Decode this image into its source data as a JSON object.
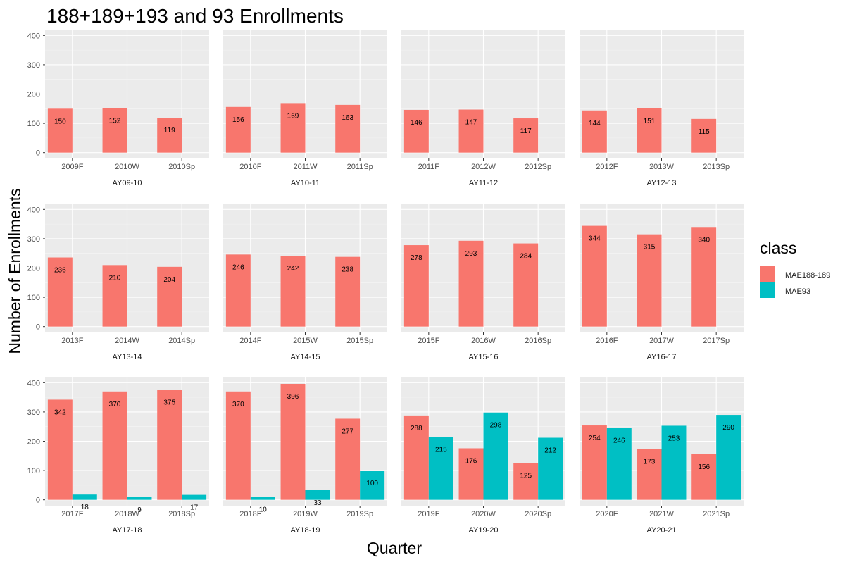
{
  "chart_data": {
    "type": "bar",
    "title": "188+189+193 and 93 Enrollments",
    "xlabel": "Quarter",
    "ylabel": "Number of Enrollments",
    "ylim": [
      0,
      420
    ],
    "yticks": [
      0,
      100,
      200,
      300,
      400
    ],
    "grid": true,
    "legend": {
      "title": "class",
      "position": "right",
      "entries": [
        {
          "name": "MAE188-189",
          "color": "#F8766D"
        },
        {
          "name": "MAE93",
          "color": "#00BFC4"
        }
      ]
    },
    "panels": [
      {
        "label": "AY09-10",
        "quarters": [
          "2009F",
          "2010W",
          "2010Sp"
        ],
        "MAE188_189": [
          150,
          152,
          119
        ],
        "MAE93": [
          null,
          null,
          null
        ]
      },
      {
        "label": "AY10-11",
        "quarters": [
          "2010F",
          "2011W",
          "2011Sp"
        ],
        "MAE188_189": [
          156,
          169,
          163
        ],
        "MAE93": [
          null,
          null,
          null
        ]
      },
      {
        "label": "AY11-12",
        "quarters": [
          "2011F",
          "2012W",
          "2012Sp"
        ],
        "MAE188_189": [
          146,
          147,
          117
        ],
        "MAE93": [
          null,
          null,
          null
        ]
      },
      {
        "label": "AY12-13",
        "quarters": [
          "2012F",
          "2013W",
          "2013Sp"
        ],
        "MAE188_189": [
          144,
          151,
          115
        ],
        "MAE93": [
          null,
          null,
          null
        ]
      },
      {
        "label": "AY13-14",
        "quarters": [
          "2013F",
          "2014W",
          "2014Sp"
        ],
        "MAE188_189": [
          236,
          210,
          204
        ],
        "MAE93": [
          null,
          null,
          null
        ]
      },
      {
        "label": "AY14-15",
        "quarters": [
          "2014F",
          "2015W",
          "2015Sp"
        ],
        "MAE188_189": [
          246,
          242,
          238
        ],
        "MAE93": [
          null,
          null,
          null
        ]
      },
      {
        "label": "AY15-16",
        "quarters": [
          "2015F",
          "2016W",
          "2016Sp"
        ],
        "MAE188_189": [
          278,
          293,
          284
        ],
        "MAE93": [
          null,
          null,
          null
        ]
      },
      {
        "label": "AY16-17",
        "quarters": [
          "2016F",
          "2017W",
          "2017Sp"
        ],
        "MAE188_189": [
          344,
          315,
          340
        ],
        "MAE93": [
          null,
          null,
          null
        ]
      },
      {
        "label": "AY17-18",
        "quarters": [
          "2017F",
          "2018W",
          "2018Sp"
        ],
        "MAE188_189": [
          342,
          370,
          375
        ],
        "MAE93": [
          18,
          9,
          17
        ]
      },
      {
        "label": "AY18-19",
        "quarters": [
          "2018F",
          "2019W",
          "2019Sp"
        ],
        "MAE188_189": [
          370,
          396,
          277
        ],
        "MAE93": [
          10,
          33,
          100
        ]
      },
      {
        "label": "AY19-20",
        "quarters": [
          "2019F",
          "2020W",
          "2020Sp"
        ],
        "MAE188_189": [
          288,
          176,
          125
        ],
        "MAE93": [
          215,
          298,
          212
        ]
      },
      {
        "label": "AY20-21",
        "quarters": [
          "2020F",
          "2021W",
          "2021Sp"
        ],
        "MAE188_189": [
          254,
          173,
          156
        ],
        "MAE93": [
          246,
          253,
          290
        ]
      }
    ]
  }
}
